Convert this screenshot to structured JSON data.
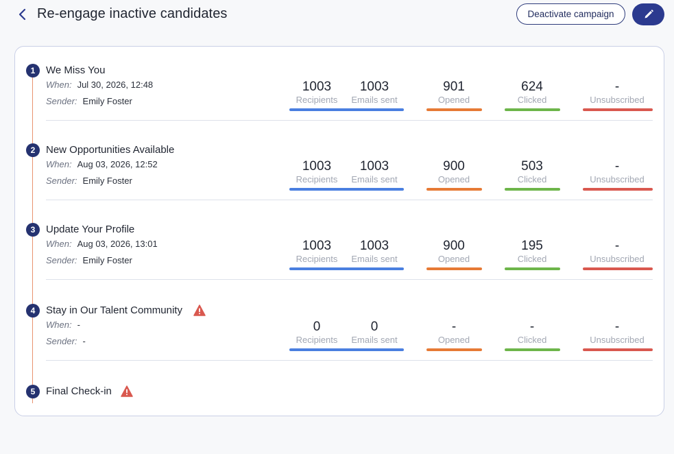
{
  "header": {
    "title": "Re-engage inactive candidates",
    "deactivate_label": "Deactivate campaign"
  },
  "labels": {
    "when": "When:",
    "sender": "Sender:",
    "recipients": "Recipients",
    "emails_sent": "Emails sent",
    "opened": "Opened",
    "clicked": "Clicked",
    "unsubscribed": "Unsubscribed"
  },
  "colors": {
    "primary": "#2b3a8f",
    "blue": "#4a7fe0",
    "orange": "#e67a35",
    "green": "#6db54a",
    "red": "#d9584f",
    "warning": "#d9584f"
  },
  "steps": [
    {
      "number": "1",
      "name": "We Miss You",
      "warning": false,
      "when": "Jul 30, 2026, 12:48",
      "sender": "Emily Foster",
      "recipients": "1003",
      "emails_sent": "1003",
      "opened": "901",
      "clicked": "624",
      "unsubscribed": "-"
    },
    {
      "number": "2",
      "name": "New Opportunities Available",
      "warning": false,
      "when": "Aug 03, 2026, 12:52",
      "sender": "Emily Foster",
      "recipients": "1003",
      "emails_sent": "1003",
      "opened": "900",
      "clicked": "503",
      "unsubscribed": "-"
    },
    {
      "number": "3",
      "name": "Update Your Profile",
      "warning": false,
      "when": "Aug 03, 2026, 13:01",
      "sender": "Emily Foster",
      "recipients": "1003",
      "emails_sent": "1003",
      "opened": "900",
      "clicked": "195",
      "unsubscribed": "-"
    },
    {
      "number": "4",
      "name": "Stay in Our Talent Community",
      "warning": true,
      "when": "-",
      "sender": "-",
      "recipients": "0",
      "emails_sent": "0",
      "opened": "-",
      "clicked": "-",
      "unsubscribed": "-"
    },
    {
      "number": "5",
      "name": "Final Check-in",
      "warning": true
    }
  ]
}
